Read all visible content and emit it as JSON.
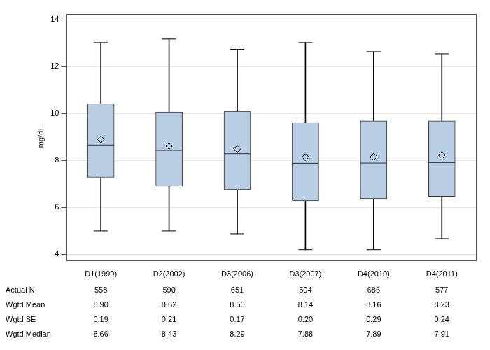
{
  "chart_data": {
    "type": "boxplot",
    "y_label": "mg/dL",
    "categories": [
      "D1(1999)",
      "D2(2002)",
      "D3(2006)",
      "D3(2007)",
      "D4(2010)",
      "D4(2011)"
    ],
    "ylim": [
      3.75,
      14.25
    ],
    "yticks": [
      4,
      6,
      8,
      10,
      12,
      14
    ],
    "grid": true,
    "color": "#b9cde5",
    "boxes": [
      {
        "min": 5.0,
        "q1": 7.28,
        "median": 8.66,
        "q3": 10.42,
        "max": 13.03,
        "mean": 8.9
      },
      {
        "min": 5.0,
        "q1": 6.91,
        "median": 8.43,
        "q3": 10.07,
        "max": 13.18,
        "mean": 8.62
      },
      {
        "min": 4.88,
        "q1": 6.76,
        "median": 8.29,
        "q3": 10.1,
        "max": 12.74,
        "mean": 8.5
      },
      {
        "min": 4.2,
        "q1": 6.28,
        "median": 7.88,
        "q3": 9.62,
        "max": 13.03,
        "mean": 8.14
      },
      {
        "min": 4.2,
        "q1": 6.37,
        "median": 7.89,
        "q3": 9.69,
        "max": 12.64,
        "mean": 8.16
      },
      {
        "min": 4.67,
        "q1": 6.47,
        "median": 7.91,
        "q3": 9.69,
        "max": 12.55,
        "mean": 8.23
      }
    ],
    "table": {
      "rows": [
        {
          "label": "Actual N",
          "values": [
            "558",
            "590",
            "651",
            "504",
            "686",
            "577"
          ]
        },
        {
          "label": "Wgtd Mean",
          "values": [
            "8.90",
            "8.62",
            "8.50",
            "8.14",
            "8.16",
            "8.23"
          ]
        },
        {
          "label": "Wgtd SE",
          "values": [
            "0.19",
            "0.21",
            "0.17",
            "0.20",
            "0.29",
            "0.24"
          ]
        },
        {
          "label": "Wgtd Median",
          "values": [
            "8.66",
            "8.43",
            "8.29",
            "7.88",
            "7.89",
            "7.91"
          ]
        }
      ]
    }
  }
}
